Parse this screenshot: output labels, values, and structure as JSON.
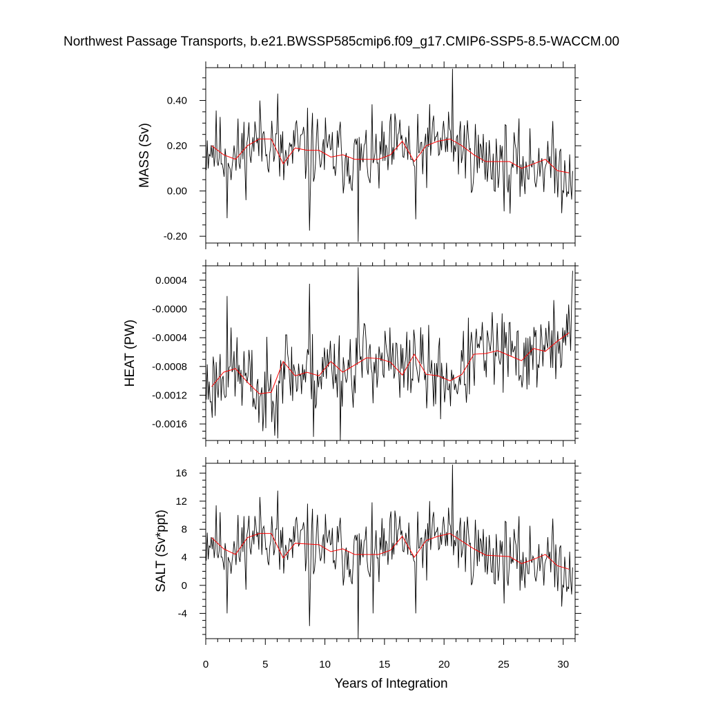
{
  "title": "Northwest Passage Transports, b.e21.BWSSP585cmip6.f09_g17.CMIP6-SSP5-8.5-WACCM.00",
  "chart_data": [
    {
      "type": "line",
      "ylabel": "MASS (Sv)",
      "xlim": [
        0,
        31
      ],
      "ylim": [
        -0.23,
        0.545
      ],
      "yticks": [
        -0.2,
        0.0,
        0.2,
        0.4
      ],
      "ytick_labels": [
        "-0.20",
        "0.00",
        "0.20",
        "0.40"
      ],
      "colors": {
        "monthly": "#000000",
        "annual": "#ff0000"
      },
      "monthly": {
        "seed": 11,
        "mean": 0.178,
        "amp": 0.085,
        "trend": -0.0025,
        "min": -0.225,
        "max": 0.54,
        "spikes": [
          [
            20.7,
            0.54
          ],
          [
            12.8,
            -0.225
          ],
          [
            8.7,
            -0.175
          ],
          [
            1.8,
            -0.12
          ],
          [
            17.6,
            -0.125
          ],
          [
            25.5,
            -0.1
          ],
          [
            6.0,
            0.43
          ]
        ]
      },
      "annual": {
        "x": [
          0.5,
          1.5,
          2.5,
          3.5,
          4.5,
          5.5,
          6.5,
          7.5,
          8.5,
          9.5,
          10.5,
          11.5,
          12.5,
          13.5,
          14.5,
          15.5,
          16.5,
          17.5,
          18.5,
          19.5,
          20.5,
          21.5,
          22.5,
          23.5,
          24.5,
          25.5,
          26.5,
          27.5,
          28.5,
          29.5,
          30.5
        ],
        "values": [
          0.2,
          0.16,
          0.14,
          0.2,
          0.23,
          0.23,
          0.12,
          0.19,
          0.18,
          0.18,
          0.15,
          0.16,
          0.14,
          0.14,
          0.14,
          0.16,
          0.22,
          0.13,
          0.2,
          0.22,
          0.23,
          0.2,
          0.16,
          0.13,
          0.13,
          0.13,
          0.1,
          0.12,
          0.14,
          0.09,
          0.08
        ]
      }
    },
    {
      "type": "line",
      "ylabel": "HEAT (PW)",
      "xlim": [
        0,
        31
      ],
      "ylim": [
        -0.00183,
        0.0006
      ],
      "yticks": [
        -0.0016,
        -0.0012,
        -0.0008,
        -0.0004,
        0.0,
        0.0004
      ],
      "ytick_labels": [
        "-0.0016",
        "-0.0012",
        "-0.0008",
        "-0.0004",
        "-0.0000",
        "0.0004"
      ],
      "colors": {
        "monthly": "#000000",
        "annual": "#ff0000"
      },
      "monthly": {
        "seed": 23,
        "mean": -0.00095,
        "amp": 0.00028,
        "trend": 2.05e-05,
        "min": -0.00183,
        "max": 0.00058,
        "spikes": [
          [
            12.8,
            0.00058
          ],
          [
            30.8,
            0.00053
          ],
          [
            8.7,
            0.00035
          ],
          [
            1.8,
            0.00018
          ],
          [
            11.3,
            -0.00183
          ],
          [
            6.0,
            -0.0018
          ],
          [
            9.0,
            -0.00178
          ],
          [
            4.8,
            -0.0017
          ]
        ]
      },
      "annual": {
        "x": [
          0.5,
          1.5,
          2.5,
          3.5,
          4.5,
          5.5,
          6.5,
          7.5,
          8.5,
          9.5,
          10.5,
          11.5,
          12.5,
          13.5,
          14.5,
          15.5,
          16.5,
          17.5,
          18.5,
          19.5,
          20.5,
          21.5,
          22.5,
          23.5,
          24.5,
          25.5,
          26.5,
          27.5,
          28.5,
          29.5,
          30.5
        ],
        "values": [
          -0.00108,
          -0.00088,
          -0.00083,
          -0.00102,
          -0.00118,
          -0.00116,
          -0.00073,
          -0.00093,
          -0.00088,
          -0.00093,
          -0.00073,
          -0.00088,
          -0.00078,
          -0.00068,
          -0.00069,
          -0.00074,
          -0.00092,
          -0.00063,
          -0.00091,
          -0.00093,
          -0.001,
          -0.00091,
          -0.00063,
          -0.00062,
          -0.00058,
          -0.00065,
          -0.00072,
          -0.00055,
          -0.00059,
          -0.00045,
          -0.00033
        ]
      }
    },
    {
      "type": "line",
      "ylabel": "SALT (Sv*ppt)",
      "xlabel": "Years of Integration",
      "xlim": [
        0,
        31
      ],
      "ylim": [
        -7.6,
        17.4
      ],
      "yticks": [
        -4,
        0,
        4,
        8,
        12,
        16
      ],
      "ytick_labels": [
        "-4",
        "0",
        "4",
        "8",
        "12",
        "16"
      ],
      "xticks": [
        0,
        5,
        10,
        15,
        20,
        25,
        30
      ],
      "xtick_labels": [
        "0",
        "5",
        "10",
        "15",
        "20",
        "25",
        "30"
      ],
      "colors": {
        "monthly": "#000000",
        "annual": "#ff0000"
      },
      "monthly": {
        "seed": 11,
        "mean": 5.4,
        "amp": 2.6,
        "trend": -0.08,
        "min": -7.6,
        "max": 17.2,
        "spikes": [
          [
            20.7,
            17.2
          ],
          [
            12.8,
            -7.6
          ],
          [
            8.7,
            -5.8
          ],
          [
            1.8,
            -4.0
          ],
          [
            17.6,
            -4.0
          ],
          [
            14.0,
            -4.0
          ],
          [
            6.0,
            13.5
          ]
        ]
      },
      "annual": {
        "x": [
          0.5,
          1.5,
          2.5,
          3.5,
          4.5,
          5.5,
          6.5,
          7.5,
          8.5,
          9.5,
          10.5,
          11.5,
          12.5,
          13.5,
          14.5,
          15.5,
          16.5,
          17.5,
          18.5,
          19.5,
          20.5,
          21.5,
          22.5,
          23.5,
          24.5,
          25.5,
          26.5,
          27.5,
          28.5,
          29.5,
          30.5
        ],
        "values": [
          6.8,
          5.2,
          4.4,
          6.8,
          7.4,
          7.4,
          3.9,
          6.0,
          5.9,
          5.8,
          4.8,
          5.2,
          4.4,
          4.4,
          4.4,
          5.0,
          7.0,
          4.0,
          6.4,
          7.0,
          7.4,
          6.3,
          5.2,
          4.3,
          4.2,
          4.1,
          3.1,
          3.7,
          4.4,
          2.8,
          2.3
        ]
      }
    }
  ]
}
